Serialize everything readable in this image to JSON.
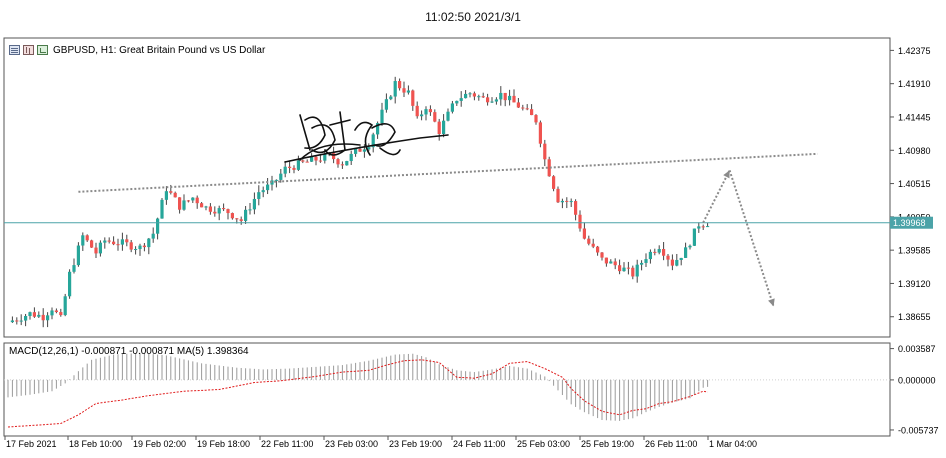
{
  "header": {
    "timestamp": "11:02:50 2021/3/1"
  },
  "window": {
    "symbol_title": "GBPUSD, H1:  Great Britain Pound vs US Dollar",
    "icons": [
      "chart-window-icon",
      "bars-icon",
      "candles-icon"
    ]
  },
  "colors": {
    "bull": "#26a69a",
    "bear": "#ef5350",
    "wick": "#444444",
    "current_line": "#4ba3a8",
    "trend": "#8a8a8a",
    "signal": "#e01b1b",
    "histogram": "#9a9a9a"
  },
  "chart_data": [
    {
      "type": "candlestick",
      "title": "GBPUSD, H1:  Great Britain Pound vs US Dollar",
      "price_ticks": [
        "1.42375",
        "1.41910",
        "1.41445",
        "1.40980",
        "1.40515",
        "1.40050",
        "1.39585",
        "1.39120",
        "1.38655"
      ],
      "ylim": [
        1.384,
        1.4252
      ],
      "current_price": "1.39968",
      "time_ticks": [
        "17 Feb 2021",
        "18 Feb 10:00",
        "19 Feb 02:00",
        "19 Feb 18:00",
        "22 Feb 11:00",
        "23 Feb 03:00",
        "23 Feb 19:00",
        "24 Feb 11:00",
        "25 Feb 03:00",
        "25 Feb 19:00",
        "26 Feb 11:00",
        "1 Mar 04:00"
      ],
      "bars": 120,
      "close_path": [
        [
          0,
          1.3858
        ],
        [
          5,
          1.387
        ],
        [
          8,
          1.3866
        ],
        [
          10,
          1.3878
        ],
        [
          12,
          1.3862
        ],
        [
          14,
          1.3925
        ],
        [
          17,
          1.3978
        ],
        [
          20,
          1.3955
        ],
        [
          22,
          1.3972
        ],
        [
          26,
          1.3968
        ],
        [
          30,
          1.3962
        ],
        [
          33,
          1.3982
        ],
        [
          36,
          1.4045
        ],
        [
          39,
          1.402
        ],
        [
          42,
          1.4032
        ],
        [
          45,
          1.4018
        ],
        [
          50,
          1.4012
        ],
        [
          53,
          1.4
        ],
        [
          57,
          1.404
        ],
        [
          60,
          1.405
        ],
        [
          63,
          1.4072
        ],
        [
          67,
          1.408
        ],
        [
          70,
          1.4085
        ],
        [
          73,
          1.409
        ],
        [
          76,
          1.408
        ],
        [
          79,
          1.4095
        ],
        [
          82,
          1.4108
        ],
        [
          85,
          1.415
        ],
        [
          88,
          1.4192
        ],
        [
          91,
          1.4178
        ],
        [
          93,
          1.414
        ],
        [
          95,
          1.416
        ],
        [
          98,
          1.4125
        ],
        [
          102,
          1.417
        ],
        [
          105,
          1.4178
        ],
        [
          108,
          1.417
        ],
        [
          110,
          1.4172
        ],
        [
          112,
          1.4176
        ],
        [
          116,
          1.416
        ],
        [
          120,
          1.414
        ],
        [
          122,
          1.4085
        ],
        [
          125,
          1.403
        ],
        [
          128,
          1.4025
        ],
        [
          131,
          1.3975
        ],
        [
          135,
          1.3945
        ],
        [
          139,
          1.3935
        ],
        [
          142,
          1.3925
        ],
        [
          145,
          1.395
        ],
        [
          148,
          1.3965
        ],
        [
          151,
          1.394
        ],
        [
          154,
          1.3958
        ],
        [
          157,
          1.3995
        ],
        [
          159,
          1.3997
        ]
      ],
      "trendline": {
        "start": [
          16,
          1.404
        ],
        "end": [
          184,
          1.4093
        ]
      },
      "forecast_arrows": [
        {
          "from": [
            158,
            1.3997
          ],
          "to": [
            164,
            1.407
          ]
        },
        {
          "from": [
            164,
            1.407
          ],
          "to": [
            174,
            1.388
          ]
        }
      ]
    },
    {
      "type": "area",
      "title": "MACD(12,26,1) -0.000871 -0.000871 MA(5) 1.398364",
      "ylabel": "",
      "value_ticks": [
        "0.003587",
        "0.000000",
        "-0.005737"
      ],
      "ylim": [
        -0.0062,
        0.004
      ],
      "series": [
        {
          "name": "MACD",
          "style": "histogram",
          "points": [
            [
              0,
              -0.002
            ],
            [
              5,
              -0.0017
            ],
            [
              10,
              -0.0013
            ],
            [
              13,
              -0.0004
            ],
            [
              16,
              0.001
            ],
            [
              19,
              0.0023
            ],
            [
              24,
              0.0029
            ],
            [
              30,
              0.0031
            ],
            [
              36,
              0.0028
            ],
            [
              44,
              0.0019
            ],
            [
              52,
              0.0014
            ],
            [
              58,
              0.0012
            ],
            [
              64,
              0.0013
            ],
            [
              70,
              0.0015
            ],
            [
              76,
              0.0017
            ],
            [
              82,
              0.0022
            ],
            [
              88,
              0.0029
            ],
            [
              92,
              0.003
            ],
            [
              95,
              0.0026
            ],
            [
              98,
              0.0018
            ],
            [
              102,
              0.0011
            ],
            [
              106,
              0.0009
            ],
            [
              110,
              0.0012
            ],
            [
              114,
              0.0016
            ],
            [
              118,
              0.0013
            ],
            [
              122,
              0.0004
            ],
            [
              125,
              -0.0012
            ],
            [
              128,
              -0.0028
            ],
            [
              131,
              -0.0037
            ],
            [
              135,
              -0.0046
            ],
            [
              139,
              -0.0047
            ],
            [
              142,
              -0.0044
            ],
            [
              145,
              -0.0037
            ],
            [
              148,
              -0.0031
            ],
            [
              151,
              -0.0026
            ],
            [
              155,
              -0.0021
            ],
            [
              158,
              -0.0009
            ],
            [
              159,
              -0.0008
            ]
          ]
        },
        {
          "name": "MA(5)",
          "style": "dotted",
          "points": [
            [
              0,
              -0.0054
            ],
            [
              6,
              -0.0052
            ],
            [
              12,
              -0.005
            ],
            [
              16,
              -0.004
            ],
            [
              20,
              -0.0027
            ],
            [
              26,
              -0.0023
            ],
            [
              32,
              -0.0018
            ],
            [
              40,
              -0.0013
            ],
            [
              48,
              -0.0011
            ],
            [
              56,
              -0.0003
            ],
            [
              62,
              -0.0001
            ],
            [
              70,
              0.0004
            ],
            [
              76,
              0.0009
            ],
            [
              82,
              0.0011
            ],
            [
              86,
              0.0017
            ],
            [
              90,
              0.0022
            ],
            [
              94,
              0.0023
            ],
            [
              98,
              0.002
            ],
            [
              102,
              0.0003
            ],
            [
              106,
              0.0002
            ],
            [
              110,
              0.0007
            ],
            [
              114,
              0.0019
            ],
            [
              118,
              0.0021
            ],
            [
              122,
              0.0013
            ],
            [
              126,
              0.0003
            ],
            [
              128,
              -0.001
            ],
            [
              131,
              -0.0024
            ],
            [
              135,
              -0.0036
            ],
            [
              139,
              -0.004
            ],
            [
              142,
              -0.0035
            ],
            [
              145,
              -0.0033
            ],
            [
              148,
              -0.0027
            ],
            [
              151,
              -0.0025
            ],
            [
              155,
              -0.0019
            ],
            [
              158,
              -0.0013
            ],
            [
              159,
              -0.0014
            ]
          ]
        }
      ]
    }
  ]
}
